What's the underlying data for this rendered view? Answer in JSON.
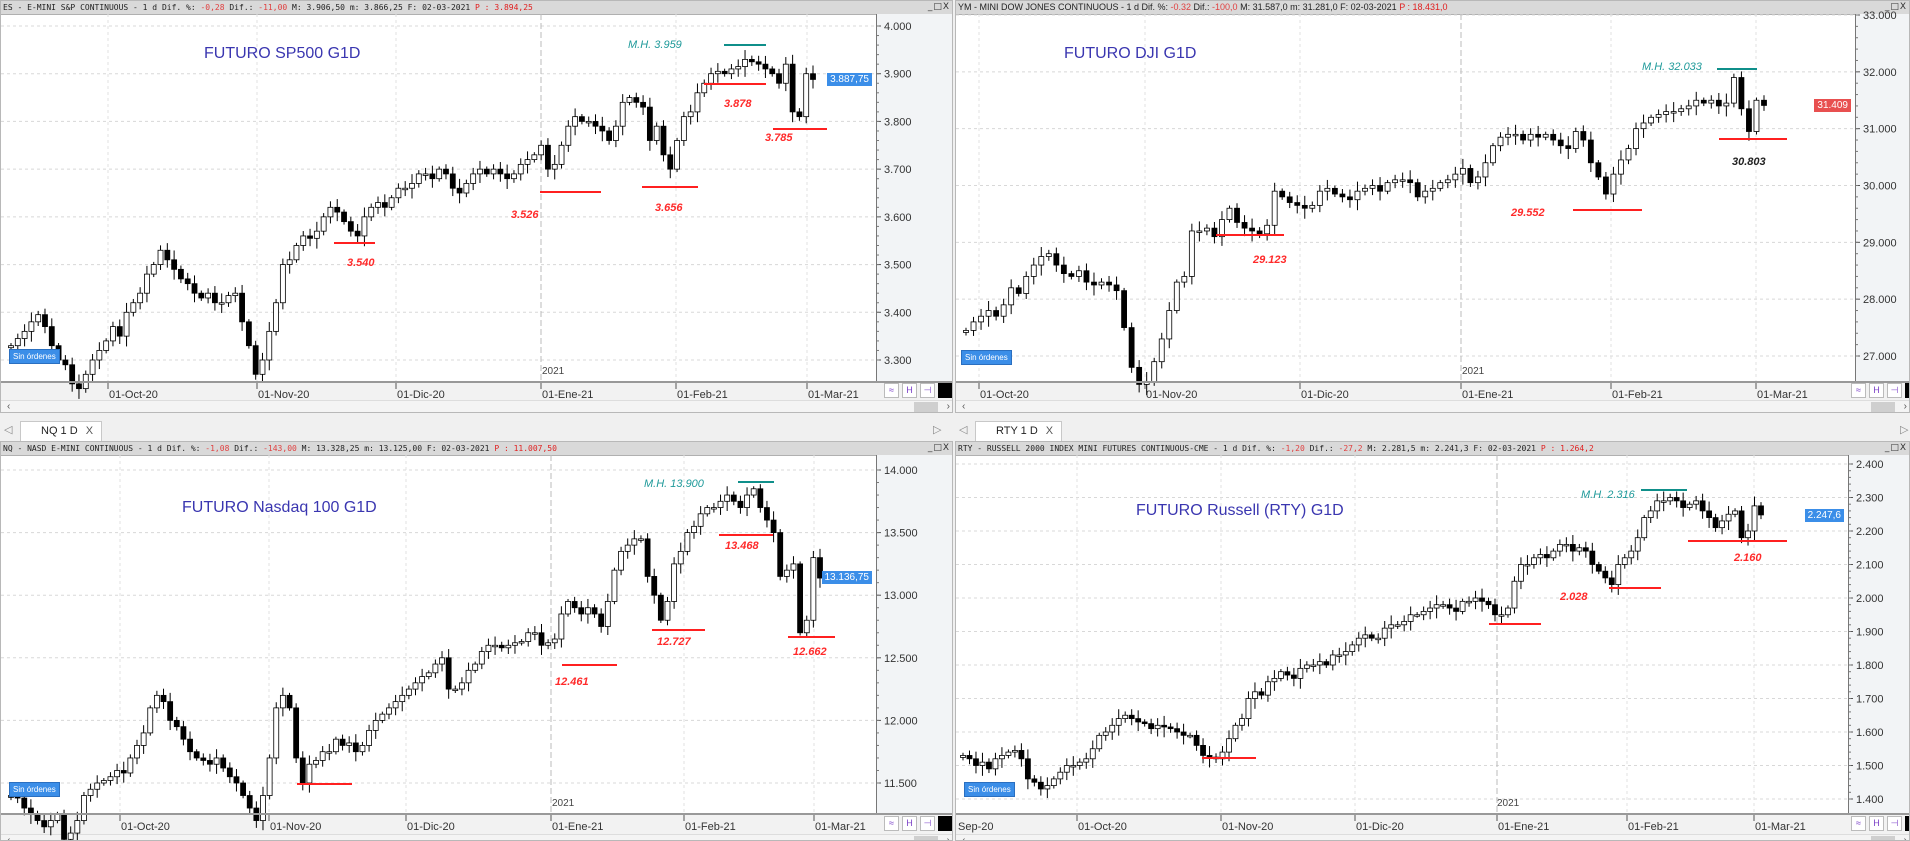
{
  "panels": [
    {
      "header": {
        "symbol": "ES - E-MINI S&P CONTINUOUS -  1 d Dif. %: ",
        "dif_pct": "-0,28",
        "dif_label": " Dif.: ",
        "dif": "-11,00",
        "mid": " M: 3.906,50 m: 3.866,25 F: 02-03-2021 ",
        "p": "P : 3.894,25"
      },
      "title": "FUTURO SP500 G1D",
      "mh": "M.H. 3.959",
      "levels": [
        "3.540",
        "3.526",
        "3.656",
        "3.878",
        "3.785"
      ],
      "current_price": "3.887,75",
      "current_price_color": "#3b8ee8"
    },
    {
      "header": {
        "symbol": "YM - MINI DOW JONES CONTINUOUS -  1 d Dif. %: ",
        "dif_pct": "-0.32",
        "dif_label": " Dif.: ",
        "dif": "-100,0",
        "mid": " M: 31.587,0 m: 31.281,0 F: 02-03-2021 ",
        "p": "P : 18.431,0"
      },
      "title": "FUTURO DJI G1D",
      "mh": "M.H. 32.033",
      "levels": [
        "30.803",
        "29.123",
        "29.552"
      ],
      "current_price": "31.409",
      "current_price_color": "#e85050"
    },
    {
      "tab": "NQ 1 D",
      "header": {
        "symbol": "NQ - NASD E-MINI CONTINUOUS -  1 d Dif. %: ",
        "dif_pct": "-1,08",
        "dif_label": " Dif.: ",
        "dif": "-143,00",
        "mid": " M: 13.328,25 m: 13.125,00 F: 02-03-2021 ",
        "p": "P : 11.007,50"
      },
      "title": "FUTURO Nasdaq 100 G1D",
      "mh": "M.H. 13.900",
      "levels": [
        "13.468",
        "12.727",
        "12.662",
        "12.461"
      ],
      "current_price": "13.136,75",
      "current_price_color": "#3b8ee8"
    },
    {
      "tab": "RTY 1 D",
      "header": {
        "symbol": "RTY - RUSSELL 2000 INDEX MINI FUTURES CONTINUOUS-CME -  1 d Dif. %: ",
        "dif_pct": "-1,20",
        "dif_label": " Dif.: ",
        "dif": "-27,2",
        "mid": " M: 2.281,5 m: 2.241,3 F: 02-03-2021 ",
        "p": "P : 1.264,2"
      },
      "title": "FUTURO Russell (RTY) G1D",
      "mh": "M.H. 2.316",
      "levels": [
        "2.160",
        "2.028"
      ],
      "current_price": "2.247,6",
      "current_price_color": "#3b8ee8"
    }
  ],
  "common": {
    "no_orders": "Sin órdenes",
    "year": "2021",
    "window_buttons": "_□X",
    "scroll_left": "‹",
    "scroll_right": "›",
    "tab_close": "X"
  },
  "colors": {
    "support_line": "#ff2020",
    "max_line": "#0f8f8a",
    "title": "#3a36b0",
    "bull_body": "#ffffff",
    "bear_body": "#000000"
  },
  "chart_data": [
    {
      "type": "candlestick",
      "title": "FUTURO SP500 G1D",
      "ylim": [
        3300,
        4000
      ],
      "y_ticks": [
        {
          "v": 4000,
          "t": "4.000"
        },
        {
          "v": 3900,
          "t": "3.900"
        },
        {
          "v": 3800,
          "t": "3.800"
        },
        {
          "v": 3700,
          "t": "3.700"
        },
        {
          "v": 3600,
          "t": "3.600"
        },
        {
          "v": 3500,
          "t": "3.500"
        },
        {
          "v": 3400,
          "t": "3.400"
        },
        {
          "v": 3300,
          "t": "3.300"
        }
      ],
      "x_ticks": [
        "01-Oct-20",
        "01-Nov-20",
        "01-Dic-20",
        "01-Ene-21",
        "01-Feb-21",
        "01-Mar-21"
      ],
      "grid": true,
      "closes": [
        3330,
        3345,
        3360,
        3380,
        3395,
        3370,
        3330,
        3300,
        3290,
        3250,
        3240,
        3270,
        3300,
        3320,
        3340,
        3370,
        3350,
        3400,
        3420,
        3440,
        3480,
        3500,
        3530,
        3510,
        3490,
        3470,
        3460,
        3440,
        3430,
        3440,
        3420,
        3420,
        3435,
        3440,
        3380,
        3330,
        3270,
        3300,
        3360,
        3420,
        3500,
        3510,
        3540,
        3560,
        3555,
        3570,
        3600,
        3620,
        3610,
        3590,
        3570,
        3560,
        3600,
        3620,
        3630,
        3620,
        3640,
        3660,
        3660,
        3670,
        3690,
        3690,
        3680,
        3700,
        3690,
        3660,
        3650,
        3670,
        3690,
        3700,
        3690,
        3700,
        3690,
        3680,
        3690,
        3710,
        3720,
        3730,
        3750,
        3700,
        3710,
        3750,
        3790,
        3810,
        3800,
        3800,
        3790,
        3780,
        3760,
        3790,
        3840,
        3850,
        3840,
        3830,
        3760,
        3790,
        3730,
        3700,
        3760,
        3810,
        3820,
        3860,
        3880,
        3900,
        3905,
        3900,
        3910,
        3915,
        3930,
        3925,
        3920,
        3910,
        3900,
        3880,
        3920,
        3820,
        3810,
        3900,
        3888
      ]
    },
    {
      "type": "candlestick",
      "title": "FUTURO DJI G1D",
      "ylim": [
        27000,
        33000
      ],
      "y_ticks": [
        {
          "v": 33000,
          "t": "33.000"
        },
        {
          "v": 32000,
          "t": "32.000"
        },
        {
          "v": 31000,
          "t": "31.000"
        },
        {
          "v": 30000,
          "t": "30.000"
        },
        {
          "v": 29000,
          "t": "29.000"
        },
        {
          "v": 28000,
          "t": "28.000"
        },
        {
          "v": 27000,
          "t": "27.000"
        }
      ],
      "x_ticks": [
        "01-Oct-20",
        "01-Nov-20",
        "01-Dic-20",
        "01-Ene-21",
        "01-Feb-21",
        "01-Mar-21"
      ],
      "grid": true,
      "closes": [
        27450,
        27600,
        27700,
        27800,
        27700,
        27900,
        28200,
        28100,
        28400,
        28600,
        28750,
        28800,
        28600,
        28450,
        28400,
        28500,
        28300,
        28250,
        28300,
        28250,
        28150,
        27500,
        26800,
        26500,
        26550,
        26900,
        27300,
        27800,
        28300,
        28400,
        29200,
        29200,
        29250,
        29100,
        29400,
        29600,
        29350,
        29250,
        29200,
        29150,
        29300,
        29900,
        29800,
        29700,
        29650,
        29600,
        29650,
        29900,
        29950,
        29850,
        29800,
        29750,
        29900,
        29950,
        30000,
        29900,
        30050,
        30100,
        30100,
        30050,
        29800,
        29900,
        29950,
        30050,
        30100,
        30200,
        30300,
        30050,
        30150,
        30400,
        30700,
        30850,
        30900,
        30900,
        30800,
        30900,
        30850,
        30900,
        30800,
        30700,
        30650,
        30950,
        30800,
        30400,
        30150,
        29850,
        30200,
        30450,
        30650,
        31000,
        31100,
        31200,
        31250,
        31300,
        31300,
        31350,
        31400,
        31500,
        31450,
        31500,
        31400,
        31450,
        31900,
        31350,
        30950,
        31500,
        31409
      ]
    },
    {
      "type": "candlestick",
      "title": "FUTURO Nasdaq 100 G1D",
      "ylim": [
        11500,
        14000
      ],
      "y_ticks": [
        {
          "v": 14000,
          "t": "14.000"
        },
        {
          "v": 13500,
          "t": "13.500"
        },
        {
          "v": 13000,
          "t": "13.000"
        },
        {
          "v": 12500,
          "t": "12.500"
        },
        {
          "v": 12000,
          "t": "12.000"
        },
        {
          "v": 11500,
          "t": "11.500"
        }
      ],
      "x_ticks": [
        "01-Oct-20",
        "01-Nov-20",
        "01-Dic-20",
        "01-Ene-21",
        "01-Feb-21",
        "01-Mar-21"
      ],
      "grid": true,
      "closes": [
        11400,
        11380,
        11300,
        11250,
        11200,
        11150,
        11200,
        11250,
        11050,
        11100,
        11200,
        11400,
        11450,
        11500,
        11520,
        11550,
        11600,
        11580,
        11700,
        11800,
        11900,
        12100,
        12200,
        12150,
        12000,
        11950,
        11850,
        11750,
        11700,
        11680,
        11650,
        11700,
        11620,
        11550,
        11500,
        11400,
        11300,
        11200,
        11400,
        11700,
        12100,
        12200,
        12100,
        11700,
        11500,
        11650,
        11680,
        11750,
        11750,
        11850,
        11800,
        11820,
        11750,
        11800,
        11920,
        12000,
        12050,
        12100,
        12150,
        12200,
        12250,
        12300,
        12350,
        12380,
        12450,
        12500,
        12250,
        12250,
        12300,
        12400,
        12450,
        12550,
        12600,
        12600,
        12580,
        12600,
        12620,
        12630,
        12700,
        12700,
        12600,
        12620,
        12650,
        12850,
        12950,
        12900,
        12850,
        12900,
        12850,
        12750,
        12950,
        13200,
        13350,
        13400,
        13450,
        13450,
        13150,
        13000,
        12800,
        12950,
        13250,
        13350,
        13500,
        13550,
        13650,
        13700,
        13700,
        13750,
        13800,
        13750,
        13700,
        13800,
        13850,
        13700,
        13600,
        13500,
        13150,
        13200,
        13250,
        12700,
        12800,
        13300,
        13137
      ]
    },
    {
      "type": "candlestick",
      "title": "FUTURO Russell (RTY) G1D",
      "ylim": [
        1400,
        2400
      ],
      "y_ticks": [
        {
          "v": 2400,
          "t": "2.400"
        },
        {
          "v": 2300,
          "t": "2.300"
        },
        {
          "v": 2200,
          "t": "2.200"
        },
        {
          "v": 2100,
          "t": "2.100"
        },
        {
          "v": 2000,
          "t": "2.000"
        },
        {
          "v": 1900,
          "t": "1.900"
        },
        {
          "v": 1800,
          "t": "1.800"
        },
        {
          "v": 1700,
          "t": "1.700"
        },
        {
          "v": 1600,
          "t": "1.600"
        },
        {
          "v": 1500,
          "t": "1.500"
        },
        {
          "v": 1400,
          "t": "1.400"
        }
      ],
      "x_ticks": [
        "Sep-20",
        "01-Oct-20",
        "01-Nov-20",
        "01-Dic-20",
        "01-Ene-21",
        "01-Feb-21",
        "01-Mar-21"
      ],
      "grid": true,
      "closes": [
        1530,
        1520,
        1500,
        1510,
        1490,
        1520,
        1530,
        1540,
        1545,
        1520,
        1460,
        1450,
        1430,
        1440,
        1460,
        1480,
        1500,
        1500,
        1510,
        1520,
        1550,
        1590,
        1600,
        1620,
        1640,
        1650,
        1640,
        1630,
        1625,
        1610,
        1620,
        1615,
        1610,
        1600,
        1590,
        1590,
        1560,
        1530,
        1525,
        1520,
        1540,
        1580,
        1620,
        1640,
        1700,
        1720,
        1710,
        1750,
        1760,
        1780,
        1770,
        1760,
        1790,
        1800,
        1800,
        1810,
        1800,
        1830,
        1830,
        1840,
        1860,
        1880,
        1890,
        1880,
        1880,
        1910,
        1920,
        1920,
        1930,
        1950,
        1950,
        1960,
        1970,
        1980,
        1980,
        1970,
        1960,
        1990,
        1990,
        2000,
        1990,
        1980,
        1950,
        1950,
        1970,
        2050,
        2100,
        2100,
        2120,
        2130,
        2120,
        2140,
        2160,
        2160,
        2140,
        2150,
        2140,
        2100,
        2080,
        2060,
        2040,
        2100,
        2120,
        2140,
        2180,
        2240,
        2260,
        2290,
        2290,
        2300,
        2290,
        2270,
        2280,
        2290,
        2260,
        2240,
        2210,
        2230,
        2250,
        2260,
        2180,
        2200,
        2275,
        2248
      ]
    }
  ]
}
